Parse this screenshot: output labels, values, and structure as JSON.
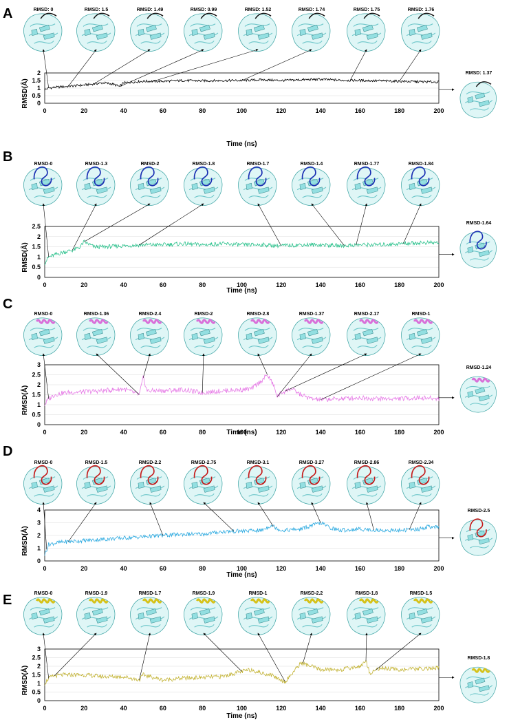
{
  "x_axis": {
    "label": "Time (ns)",
    "ticks": [
      "0",
      "20",
      "40",
      "60",
      "80",
      "100",
      "120",
      "140",
      "160",
      "180",
      "200"
    ],
    "range": [
      0,
      200
    ]
  },
  "chart_data": [
    {
      "type": "line",
      "panel": "A",
      "color": "#000000",
      "ylabel": "RMSD(Å)",
      "ylim": [
        0,
        2
      ],
      "yticks": [
        "0",
        "0.5",
        "1",
        "1.5",
        "2"
      ],
      "series": [
        {
          "name": "RMSD",
          "x": [
            0,
            2,
            5,
            10,
            15,
            20,
            25,
            30,
            35,
            38,
            40,
            45,
            50,
            60,
            70,
            80,
            90,
            100,
            110,
            120,
            130,
            140,
            150,
            160,
            170,
            180,
            190,
            200
          ],
          "values": [
            0.9,
            1.0,
            1.05,
            1.1,
            1.15,
            1.2,
            1.28,
            1.35,
            1.25,
            1.1,
            1.35,
            1.4,
            1.45,
            1.45,
            1.5,
            1.48,
            1.5,
            1.5,
            1.55,
            1.5,
            1.55,
            1.58,
            1.52,
            1.5,
            1.48,
            1.45,
            1.42,
            1.4
          ]
        }
      ],
      "snapshots": [
        {
          "label": "RMSD: 0",
          "time": 2
        },
        {
          "label": "RMSD: 1.5",
          "time": 12
        },
        {
          "label": "RMSD: 1.49",
          "time": 25
        },
        {
          "label": "RMSD: 0.99",
          "time": 38
        },
        {
          "label": "RMSD: 1.52",
          "time": 55
        },
        {
          "label": "RMSD: 1.74",
          "time": 100
        },
        {
          "label": "RMSD: 1.75",
          "time": 155
        },
        {
          "label": "RMSD: 1.76",
          "time": 180
        }
      ],
      "final_snapshot": "RMSD: 1.37"
    },
    {
      "type": "line",
      "panel": "B",
      "color": "#27c08a",
      "ylabel": "RMSD(Å)",
      "ylim": [
        0,
        2.5
      ],
      "yticks": [
        "0",
        "0.5",
        "1",
        "1.5",
        "2",
        "2.5"
      ],
      "series": [
        {
          "name": "RMSD",
          "x": [
            0,
            2,
            5,
            10,
            15,
            18,
            20,
            25,
            30,
            40,
            50,
            60,
            70,
            80,
            90,
            100,
            110,
            120,
            130,
            140,
            150,
            160,
            170,
            180,
            190,
            200
          ],
          "values": [
            0.7,
            1.0,
            1.1,
            1.25,
            1.35,
            1.5,
            1.75,
            1.5,
            1.5,
            1.55,
            1.6,
            1.6,
            1.65,
            1.6,
            1.65,
            1.6,
            1.6,
            1.55,
            1.6,
            1.6,
            1.55,
            1.6,
            1.6,
            1.65,
            1.7,
            1.7
          ]
        }
      ],
      "snapshots": [
        {
          "label": "RMSD-0",
          "time": 2
        },
        {
          "label": "RMSD-1.3",
          "time": 14
        },
        {
          "label": "RMSD-2",
          "time": 20
        },
        {
          "label": "RMSD-1.8",
          "time": 48
        },
        {
          "label": "RMSD-1.7",
          "time": 120
        },
        {
          "label": "RMSD-1.4",
          "time": 152
        },
        {
          "label": "RMSD-1.77",
          "time": 158
        },
        {
          "label": "RMSD-1.84",
          "time": 182
        }
      ],
      "final_snapshot": "RMSD-1.64"
    },
    {
      "type": "line",
      "panel": "C",
      "color": "#e67ae6",
      "ylabel": "RMSD(Å)",
      "ylim": [
        0,
        3
      ],
      "yticks": [
        "0",
        "0.5",
        "1",
        "1.5",
        "2",
        "2.5",
        "3"
      ],
      "series": [
        {
          "name": "RMSD",
          "x": [
            0,
            2,
            5,
            10,
            20,
            30,
            40,
            48,
            50,
            52,
            60,
            70,
            80,
            90,
            100,
            105,
            110,
            113,
            116,
            118,
            120,
            125,
            130,
            135,
            140,
            150,
            160,
            170,
            180,
            190,
            200
          ],
          "values": [
            1.0,
            1.3,
            1.5,
            1.6,
            1.65,
            1.7,
            1.8,
            1.5,
            2.35,
            1.7,
            1.7,
            1.75,
            1.6,
            1.7,
            1.75,
            1.8,
            2.2,
            2.5,
            2.0,
            1.4,
            1.6,
            1.8,
            1.5,
            1.3,
            1.25,
            1.3,
            1.35,
            1.3,
            1.3,
            1.35,
            1.3
          ]
        }
      ],
      "snapshots": [
        {
          "label": "RMSD-0",
          "time": 2
        },
        {
          "label": "RMSD-1.36",
          "time": 48
        },
        {
          "label": "RMSD-2.4",
          "time": 50
        },
        {
          "label": "RMSD-2",
          "time": 80
        },
        {
          "label": "RMSD-2.8",
          "time": 113
        },
        {
          "label": "RMSD-1.37",
          "time": 118
        },
        {
          "label": "RMSD-2.17",
          "time": 122
        },
        {
          "label": "RMSD-1",
          "time": 140
        }
      ],
      "final_snapshot": "RMSD-1.24"
    },
    {
      "type": "line",
      "panel": "D",
      "color": "#2aa9e0",
      "ylabel": "RMSD(Å)",
      "ylim": [
        0,
        4
      ],
      "yticks": [
        "0",
        "1",
        "2",
        "3",
        "4"
      ],
      "series": [
        {
          "name": "RMSD",
          "x": [
            0,
            2,
            5,
            10,
            20,
            30,
            40,
            50,
            60,
            70,
            80,
            90,
            100,
            110,
            115,
            120,
            130,
            140,
            145,
            150,
            160,
            170,
            180,
            190,
            195,
            200
          ],
          "values": [
            0.5,
            1.3,
            1.4,
            1.5,
            1.6,
            1.7,
            1.8,
            1.9,
            2.0,
            2.1,
            2.1,
            2.3,
            2.35,
            2.4,
            2.8,
            2.4,
            2.5,
            3.0,
            2.6,
            2.4,
            2.5,
            2.4,
            2.4,
            2.5,
            2.7,
            2.6
          ]
        }
      ],
      "snapshots": [
        {
          "label": "RMSD-0",
          "time": 1
        },
        {
          "label": "RMSD-1.5",
          "time": 12
        },
        {
          "label": "RMSD-2.2",
          "time": 60
        },
        {
          "label": "RMSD-2.75",
          "time": 96
        },
        {
          "label": "RMSD-3.1",
          "time": 116
        },
        {
          "label": "RMSD-3.27",
          "time": 140
        },
        {
          "label": "RMSD-2.86",
          "time": 167
        },
        {
          "label": "RMSD-2.34",
          "time": 185
        }
      ],
      "final_snapshot": "RMSD-2.5"
    },
    {
      "type": "line",
      "panel": "E",
      "color": "#c2b231",
      "ylabel": "RMSD(Å)",
      "ylim": [
        0,
        3
      ],
      "yticks": [
        "0",
        "0.5",
        "1",
        "1.5",
        "2",
        "2.5",
        "3"
      ],
      "series": [
        {
          "name": "RMSD",
          "x": [
            0,
            2,
            5,
            10,
            20,
            30,
            40,
            48,
            50,
            60,
            70,
            80,
            90,
            100,
            105,
            110,
            115,
            120,
            122,
            125,
            130,
            135,
            140,
            150,
            160,
            163,
            165,
            170,
            180,
            190,
            200
          ],
          "values": [
            1.0,
            1.3,
            1.45,
            1.5,
            1.5,
            1.4,
            1.4,
            1.2,
            1.5,
            1.2,
            1.3,
            1.35,
            1.4,
            1.7,
            1.8,
            1.6,
            1.5,
            1.2,
            1.1,
            1.5,
            2.2,
            2.0,
            1.8,
            1.8,
            2.0,
            2.3,
            1.6,
            1.9,
            1.8,
            1.85,
            1.9
          ]
        }
      ],
      "snapshots": [
        {
          "label": "RMSD-0",
          "time": 2
        },
        {
          "label": "RMSD-1.9",
          "time": 5
        },
        {
          "label": "RMSD-1.7",
          "time": 48
        },
        {
          "label": "RMSD-1.9",
          "time": 100
        },
        {
          "label": "RMSD-1",
          "time": 122
        },
        {
          "label": "RMSD-2.2",
          "time": 131
        },
        {
          "label": "RMSD-1.8",
          "time": 163
        },
        {
          "label": "RMSD-1.5",
          "time": 168
        }
      ],
      "final_snapshot": "RMSD-1.8"
    }
  ]
}
